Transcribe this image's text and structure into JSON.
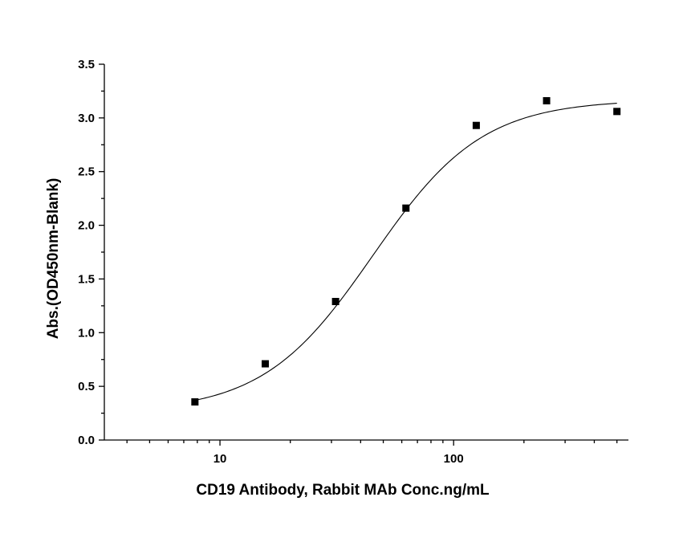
{
  "chart_data": {
    "type": "scatter",
    "title": "",
    "xlabel": "CD19 Antibody, Rabbit MAb Conc.ng/mL",
    "ylabel": "Abs.(OD450nm-Blank)",
    "x_scale": "log",
    "xlim": [
      3.2,
      560
    ],
    "ylim": [
      0,
      3.5
    ],
    "x_major_ticks": [
      10,
      100
    ],
    "x_tick_labels": [
      "10",
      "100"
    ],
    "y_major_ticks": [
      0.0,
      0.5,
      1.0,
      1.5,
      2.0,
      2.5,
      3.0,
      3.5
    ],
    "y_tick_labels": [
      "0.0",
      "0.5",
      "1.0",
      "1.5",
      "2.0",
      "2.5",
      "3.0",
      "3.5"
    ],
    "grid": false,
    "legend": "none",
    "marker_color": "#000000",
    "line_color": "#000000",
    "series": [
      {
        "marker": "square",
        "x": [
          7.8125,
          15.625,
          31.25,
          62.5,
          125,
          250,
          500
        ],
        "y": [
          0.355,
          0.71,
          1.29,
          2.16,
          2.93,
          3.16,
          3.06
        ]
      }
    ],
    "fit_curve": {
      "model": "4PL",
      "bottom": 0.26,
      "top": 3.17,
      "ec50": 45,
      "hill": 1.85,
      "x_range": [
        7.8125,
        500
      ]
    }
  }
}
